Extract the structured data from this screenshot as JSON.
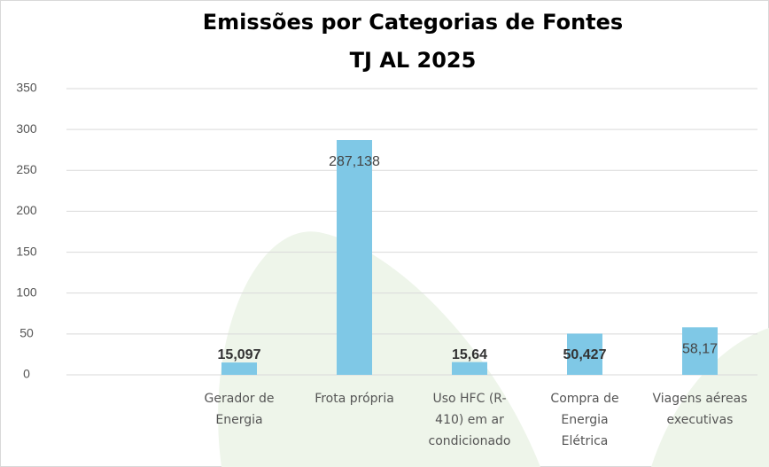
{
  "chart_data": {
    "type": "bar",
    "title": "Emissões por Categorias de Fontes",
    "subtitle": "TJ AL 2025",
    "categories": [
      null,
      "Gerador de Energia",
      "Frota própria",
      "Uso HFC (R-410) em ar condicionado",
      "Compra de Energia Elétrica",
      "Viagens aéreas executivas"
    ],
    "values": [
      null,
      15.097,
      287.138,
      15.64,
      50.427,
      58.17
    ],
    "value_labels": [
      null,
      "15,097",
      "287,138",
      "15,64",
      "50,427",
      "58,17"
    ],
    "color": "#7fc8e6",
    "ylim": [
      0,
      350
    ],
    "yticks": [
      0,
      50,
      100,
      150,
      200,
      250,
      300,
      350
    ],
    "grid": true
  }
}
